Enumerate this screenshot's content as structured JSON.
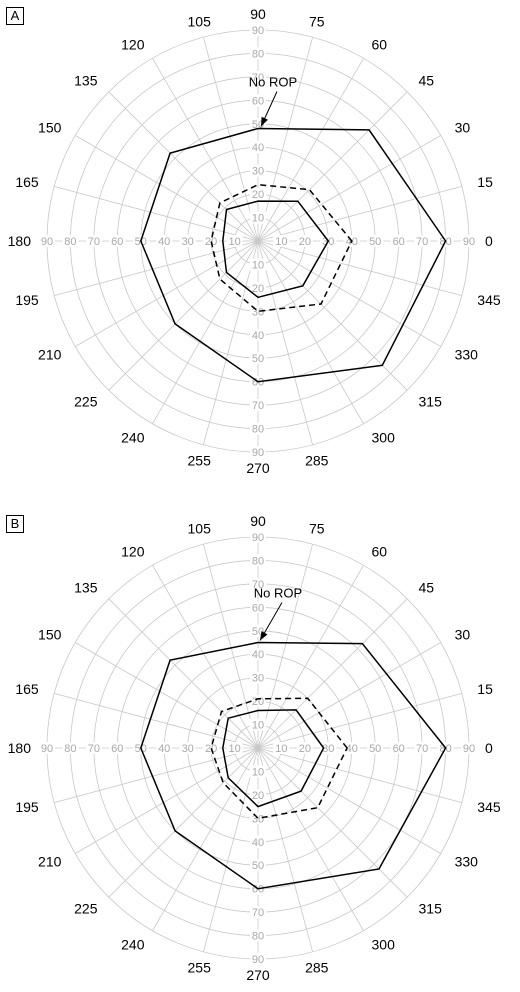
{
  "chart_data": [
    {
      "type": "polar-line",
      "panel_label": "A",
      "angles_deg": [
        0,
        15,
        30,
        45,
        60,
        75,
        90,
        105,
        120,
        135,
        150,
        165,
        180,
        195,
        210,
        225,
        240,
        255,
        270,
        285,
        300,
        315,
        330,
        345
      ],
      "angle_tick_labels": [
        "0",
        "15",
        "30",
        "45",
        "60",
        "75",
        "90",
        "105",
        "120",
        "135",
        "150",
        "165",
        "180",
        "195",
        "210",
        "225",
        "240",
        "255",
        "270",
        "285",
        "300",
        "315",
        "330",
        "345"
      ],
      "radial_ticks": [
        10,
        20,
        30,
        40,
        50,
        60,
        70,
        80,
        90
      ],
      "radial_tick_labels": [
        "10",
        "20",
        "30",
        "40",
        "50",
        "60",
        "70",
        "80",
        "90"
      ],
      "rlim": [
        0,
        90
      ],
      "grid": true,
      "series": [
        {
          "name": "No ROP",
          "style": "solid",
          "angles": [
            0,
            45,
            90,
            135,
            180,
            225,
            270,
            315
          ],
          "values": [
            80,
            67,
            48,
            53,
            50,
            50,
            60,
            75
          ]
        },
        {
          "name": "",
          "style": "dashed",
          "angles": [
            0,
            45,
            90,
            135,
            180,
            225,
            270,
            315
          ],
          "values": [
            40,
            31,
            24,
            23,
            20,
            23,
            30,
            38
          ]
        },
        {
          "name": "",
          "style": "solid",
          "angles": [
            0,
            45,
            90,
            135,
            180,
            225,
            270,
            315
          ],
          "values": [
            30,
            24,
            17,
            19,
            15,
            19,
            24,
            27
          ]
        }
      ],
      "annotation": {
        "text": "No ROP",
        "target_angle": 90,
        "target_value": 48
      }
    },
    {
      "type": "polar-line",
      "panel_label": "B",
      "angles_deg": [
        0,
        15,
        30,
        45,
        60,
        75,
        90,
        105,
        120,
        135,
        150,
        165,
        180,
        195,
        210,
        225,
        240,
        255,
        270,
        285,
        300,
        315,
        330,
        345
      ],
      "angle_tick_labels": [
        "0",
        "15",
        "30",
        "45",
        "60",
        "75",
        "90",
        "105",
        "120",
        "135",
        "150",
        "165",
        "180",
        "195",
        "210",
        "225",
        "240",
        "255",
        "270",
        "285",
        "300",
        "315",
        "330",
        "345"
      ],
      "radial_ticks": [
        10,
        20,
        30,
        40,
        50,
        60,
        70,
        80,
        90
      ],
      "radial_tick_labels": [
        "10",
        "20",
        "30",
        "40",
        "50",
        "60",
        "70",
        "80",
        "90"
      ],
      "rlim": [
        0,
        90
      ],
      "grid": true,
      "series": [
        {
          "name": "No ROP",
          "style": "solid",
          "angles": [
            0,
            45,
            90,
            135,
            180,
            225,
            270,
            315
          ],
          "values": [
            80,
            63,
            45,
            53,
            50,
            50,
            60,
            73
          ]
        },
        {
          "name": "",
          "style": "dashed",
          "angles": [
            0,
            45,
            90,
            135,
            180,
            225,
            270,
            315
          ],
          "values": [
            38,
            30,
            21,
            22,
            20,
            21,
            30,
            36
          ]
        },
        {
          "name": "",
          "style": "solid",
          "angles": [
            0,
            45,
            90,
            135,
            180,
            225,
            270,
            315
          ],
          "values": [
            28,
            23,
            16,
            18,
            15,
            18,
            25,
            26
          ]
        }
      ],
      "annotation": {
        "text": "No ROP",
        "target_angle": 90,
        "target_value": 45
      }
    }
  ]
}
